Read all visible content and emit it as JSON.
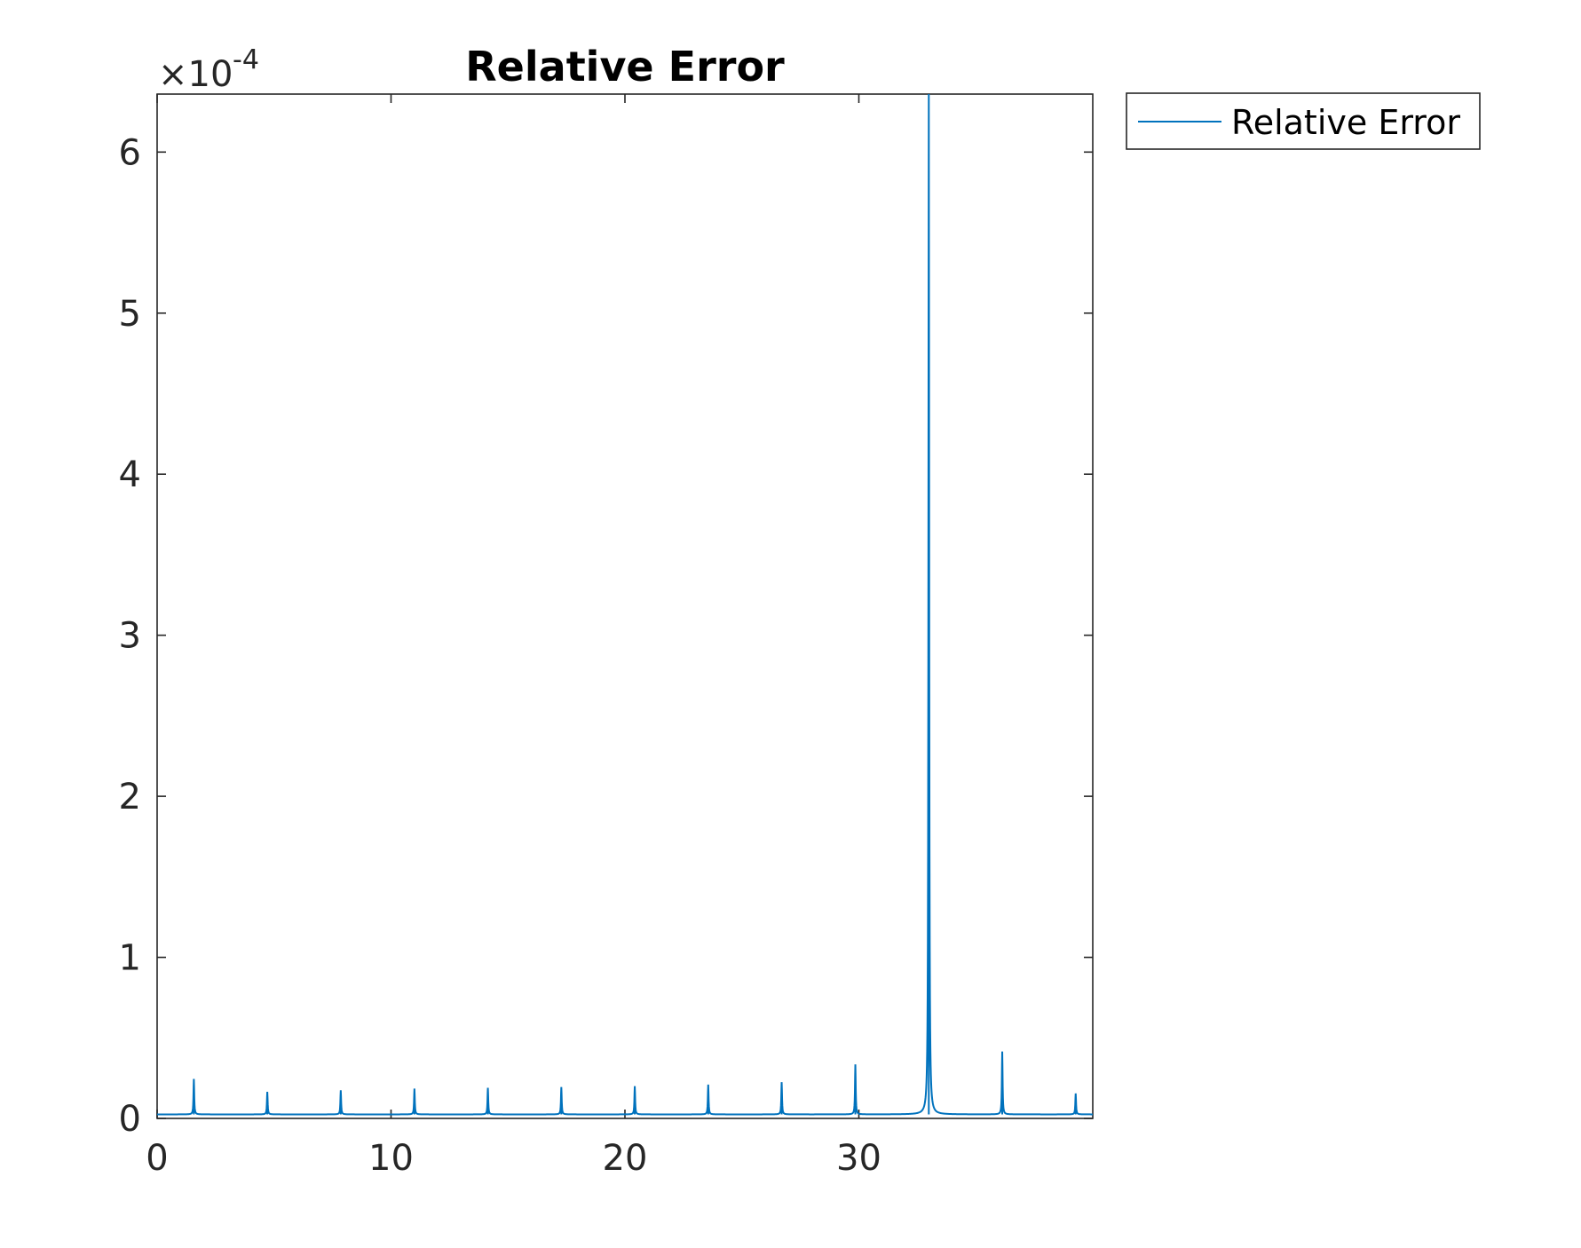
{
  "chart_data": {
    "type": "line",
    "title": "Relative Error",
    "xlabel": "",
    "ylabel": "",
    "xlim": [
      0,
      40
    ],
    "ylim": [
      0,
      0.000636
    ],
    "x_ticks": [
      0,
      10,
      20,
      30
    ],
    "x_tick_labels": [
      "0",
      "10",
      "20",
      "30"
    ],
    "y_ticks": [
      0,
      1,
      2,
      3,
      4,
      5,
      6
    ],
    "y_tick_labels": [
      "0",
      "1",
      "2",
      "3",
      "4",
      "5",
      "6"
    ],
    "y_exponent_label": {
      "base": "×10",
      "power": "-4"
    },
    "grid": false,
    "legend": {
      "position": "outside-top-right",
      "entries": [
        "Relative Error"
      ]
    },
    "series": [
      {
        "name": "Relative Error",
        "color": "#0072BD",
        "baseline": 2.5e-06,
        "peaks": [
          {
            "x": 1.57,
            "y": 2.45e-05
          },
          {
            "x": 4.71,
            "y": 1.65e-05
          },
          {
            "x": 7.85,
            "y": 1.75e-05
          },
          {
            "x": 11.0,
            "y": 1.85e-05
          },
          {
            "x": 14.14,
            "y": 1.9e-05
          },
          {
            "x": 17.28,
            "y": 1.95e-05
          },
          {
            "x": 20.42,
            "y": 2e-05
          },
          {
            "x": 23.56,
            "y": 2.1e-05
          },
          {
            "x": 26.7,
            "y": 2.25e-05
          },
          {
            "x": 29.85,
            "y": 3.35e-05
          },
          {
            "x": 32.99,
            "y": 0.000636
          },
          {
            "x": 36.13,
            "y": 4.15e-05
          },
          {
            "x": 39.27,
            "y": 1.55e-05
          }
        ]
      }
    ]
  }
}
